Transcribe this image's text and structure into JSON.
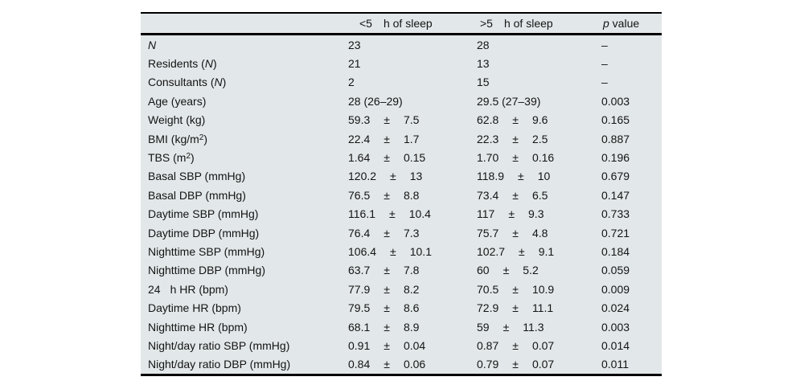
{
  "table": {
    "bg_color": "#e2e7e9",
    "rule_color": "#000000",
    "pm": "±",
    "header": {
      "col1_qty": "<5",
      "col1_unit": "h of sleep",
      "col2_qty": ">5",
      "col2_unit": "h of sleep",
      "p_italic": "p",
      "p_rest": " value"
    },
    "rows": [
      {
        "label": [
          {
            "t": "N",
            "i": true
          }
        ],
        "c1": {
          "text": "23"
        },
        "c2": {
          "text": "28"
        },
        "p": "–"
      },
      {
        "label": [
          {
            "t": "Residents ("
          },
          {
            "t": "N",
            "i": true
          },
          {
            "t": ")"
          }
        ],
        "c1": {
          "text": "21"
        },
        "c2": {
          "text": "13"
        },
        "p": "–"
      },
      {
        "label": [
          {
            "t": "Consultants ("
          },
          {
            "t": "N",
            "i": true
          },
          {
            "t": ")"
          }
        ],
        "c1": {
          "text": "2"
        },
        "c2": {
          "text": "15"
        },
        "p": "–"
      },
      {
        "label": [
          {
            "t": "Age (years)"
          }
        ],
        "c1": {
          "text": "28 (26–29)"
        },
        "c2": {
          "text": "29.5 (27–39)"
        },
        "p": "0.003"
      },
      {
        "label": [
          {
            "t": "Weight (kg)"
          }
        ],
        "c1": {
          "v": "59.3",
          "e": "7.5"
        },
        "c2": {
          "v": "62.8",
          "e": "9.6"
        },
        "p": "0.165"
      },
      {
        "label": [
          {
            "t": "BMI (kg/m"
          },
          {
            "t": "2",
            "sup": true
          },
          {
            "t": ")"
          }
        ],
        "c1": {
          "v": "22.4",
          "e": "1.7"
        },
        "c2": {
          "v": "22.3",
          "e": "2.5"
        },
        "p": "0.887"
      },
      {
        "label": [
          {
            "t": "TBS (m"
          },
          {
            "t": "2",
            "sup": true
          },
          {
            "t": ")"
          }
        ],
        "c1": {
          "v": "1.64",
          "e": "0.15"
        },
        "c2": {
          "v": "1.70",
          "e": "0.16"
        },
        "p": "0.196"
      },
      {
        "label": [
          {
            "t": "Basal SBP (mmHg)"
          }
        ],
        "c1": {
          "v": "120.2",
          "e": "13"
        },
        "c2": {
          "v": "118.9",
          "e": "10"
        },
        "p": "0.679"
      },
      {
        "label": [
          {
            "t": "Basal DBP (mmHg)"
          }
        ],
        "c1": {
          "v": "76.5",
          "e": "8.8"
        },
        "c2": {
          "v": "73.4",
          "e": "6.5"
        },
        "p": "0.147"
      },
      {
        "label": [
          {
            "t": "Daytime SBP (mmHg)"
          }
        ],
        "c1": {
          "v": "116.1",
          "e": "10.4"
        },
        "c2": {
          "v": "117",
          "e": "9.3"
        },
        "p": "0.733"
      },
      {
        "label": [
          {
            "t": "Daytime DBP (mmHg)"
          }
        ],
        "c1": {
          "v": "76.4",
          "e": "7.3"
        },
        "c2": {
          "v": "75.7",
          "e": "4.8"
        },
        "p": "0.721"
      },
      {
        "label": [
          {
            "t": "Nighttime SBP (mmHg)"
          }
        ],
        "c1": {
          "v": "106.4",
          "e": "10.1"
        },
        "c2": {
          "v": "102.7",
          "e": "9.1"
        },
        "p": "0.184"
      },
      {
        "label": [
          {
            "t": "Nighttime DBP (mmHg)"
          }
        ],
        "c1": {
          "v": "63.7",
          "e": "7.8"
        },
        "c2": {
          "v": "60",
          "e": "5.2"
        },
        "p": "0.059"
      },
      {
        "label": [
          {
            "t": "24"
          },
          {
            "gap": true
          },
          {
            "t": "h HR (bpm)"
          }
        ],
        "c1": {
          "v": "77.9",
          "e": "8.2"
        },
        "c2": {
          "v": "70.5",
          "e": "10.9"
        },
        "p": "0.009"
      },
      {
        "label": [
          {
            "t": "Daytime HR (bpm)"
          }
        ],
        "c1": {
          "v": "79.5",
          "e": "8.6"
        },
        "c2": {
          "v": "72.9",
          "e": "11.1"
        },
        "p": "0.024"
      },
      {
        "label": [
          {
            "t": "Nighttime HR (bpm)"
          }
        ],
        "c1": {
          "v": "68.1",
          "e": "8.9"
        },
        "c2": {
          "v": "59",
          "e": "11.3"
        },
        "p": "0.003"
      },
      {
        "label": [
          {
            "t": "Night/day ratio SBP (mmHg)"
          }
        ],
        "c1": {
          "v": "0.91",
          "e": "0.04"
        },
        "c2": {
          "v": "0.87",
          "e": "0.07"
        },
        "p": "0.014"
      },
      {
        "label": [
          {
            "t": "Night/day ratio DBP (mmHg)"
          }
        ],
        "c1": {
          "v": "0.84",
          "e": "0.06"
        },
        "c2": {
          "v": "0.79",
          "e": "0.07"
        },
        "p": "0.011"
      }
    ]
  }
}
